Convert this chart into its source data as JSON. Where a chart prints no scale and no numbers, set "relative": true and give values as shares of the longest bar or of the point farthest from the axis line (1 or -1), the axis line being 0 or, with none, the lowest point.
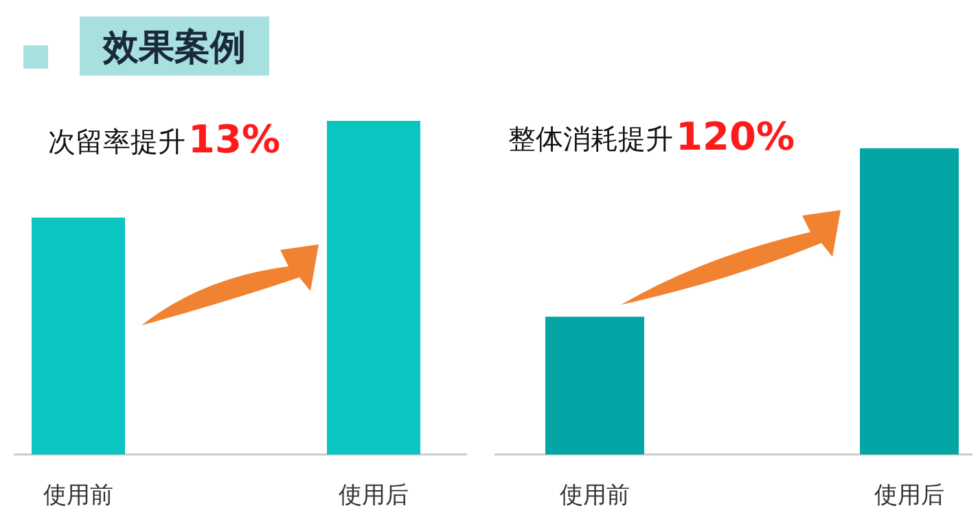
{
  "chart_data": [
    {
      "type": "bar",
      "title": "次留率提升",
      "subtitle": "13%",
      "annotations": [
        "效果案例"
      ],
      "categories": [
        "使用前",
        "使用后"
      ],
      "values": [
        0.71,
        1
      ],
      "color": "#0bc5c0",
      "relative": true
    },
    {
      "type": "bar",
      "title": "整体消耗提升",
      "subtitle": "120%",
      "categories": [
        "使用前",
        "使用后"
      ],
      "values": [
        0.45,
        1
      ],
      "color": "#04a5a5",
      "relative": true
    }
  ]
}
